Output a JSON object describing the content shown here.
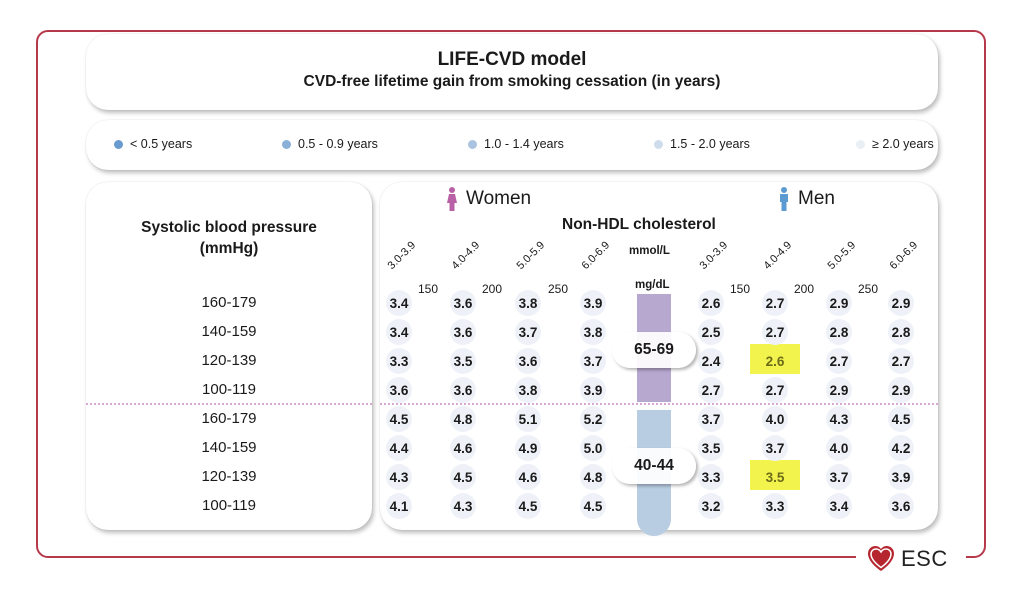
{
  "header": {
    "title": "LIFE-CVD model",
    "subtitle": "CVD-free lifetime gain from smoking cessation (in years)"
  },
  "legend": [
    {
      "label": "< 0.5 years",
      "color": "#6a9bcf"
    },
    {
      "label": "0.5 - 0.9 years",
      "color": "#8bb0d8"
    },
    {
      "label": "1.0 - 1.4 years",
      "color": "#aac3e0"
    },
    {
      "label": "1.5 - 2.0 years",
      "color": "#cfdcec"
    },
    {
      "label": "≥ 2.0 years",
      "color": "#eaeff6"
    }
  ],
  "bp_panel": {
    "title_line1": "Systolic blood pressure",
    "title_line2": "(mmHg)"
  },
  "grid": {
    "women_label": "Women",
    "men_label": "Men",
    "cholesterol_title": "Non-HDL cholesterol",
    "unit_mmol": "mmol/L",
    "unit_mg": "mg/dL",
    "women_color": "#b861a6",
    "men_color": "#5b9bd1"
  },
  "branding": {
    "logo_text": "ESC",
    "logo_color": "#b5262e"
  },
  "chart_data": {
    "type": "table",
    "title": "LIFE-CVD model — CVD-free lifetime gain from smoking cessation (in years)",
    "row_label": "Systolic blood pressure (mmHg)",
    "column_label": "Non-HDL cholesterol",
    "columns_mmol": [
      "3.0-3.9",
      "4.0-4.9",
      "5.0-5.9",
      "6.0-6.9"
    ],
    "columns_mgdl_ticks": [
      "150",
      "200",
      "250"
    ],
    "sbp_rows": [
      "160-179",
      "140-159",
      "120-139",
      "100-119"
    ],
    "age_groups": [
      {
        "age": "65-69",
        "bar_color": "#b7a8cf",
        "women": [
          [
            3.4,
            3.6,
            3.8,
            3.9
          ],
          [
            3.4,
            3.6,
            3.7,
            3.8
          ],
          [
            3.3,
            3.5,
            3.6,
            3.7
          ],
          [
            3.6,
            3.6,
            3.8,
            3.9
          ]
        ],
        "men": [
          [
            2.6,
            2.7,
            2.9,
            2.9
          ],
          [
            2.5,
            2.7,
            2.8,
            2.8
          ],
          [
            2.4,
            2.6,
            2.7,
            2.7
          ],
          [
            2.7,
            2.7,
            2.9,
            2.9
          ]
        ],
        "highlight": {
          "sex": "men",
          "row": 2,
          "col": 1
        }
      },
      {
        "age": "40-44",
        "bar_color": "#b9cde2",
        "women": [
          [
            4.5,
            4.8,
            5.1,
            5.2
          ],
          [
            4.4,
            4.6,
            4.9,
            5.0
          ],
          [
            4.3,
            4.5,
            4.6,
            4.8
          ],
          [
            4.1,
            4.3,
            4.5,
            4.5
          ]
        ],
        "men": [
          [
            3.7,
            4.0,
            4.3,
            4.5
          ],
          [
            3.5,
            3.7,
            4.0,
            4.2
          ],
          [
            3.3,
            3.5,
            3.7,
            3.9
          ],
          [
            3.2,
            3.3,
            3.4,
            3.6
          ]
        ],
        "highlight": {
          "sex": "men",
          "row": 2,
          "col": 1
        }
      }
    ],
    "highlight_color": "#f2f23a"
  }
}
